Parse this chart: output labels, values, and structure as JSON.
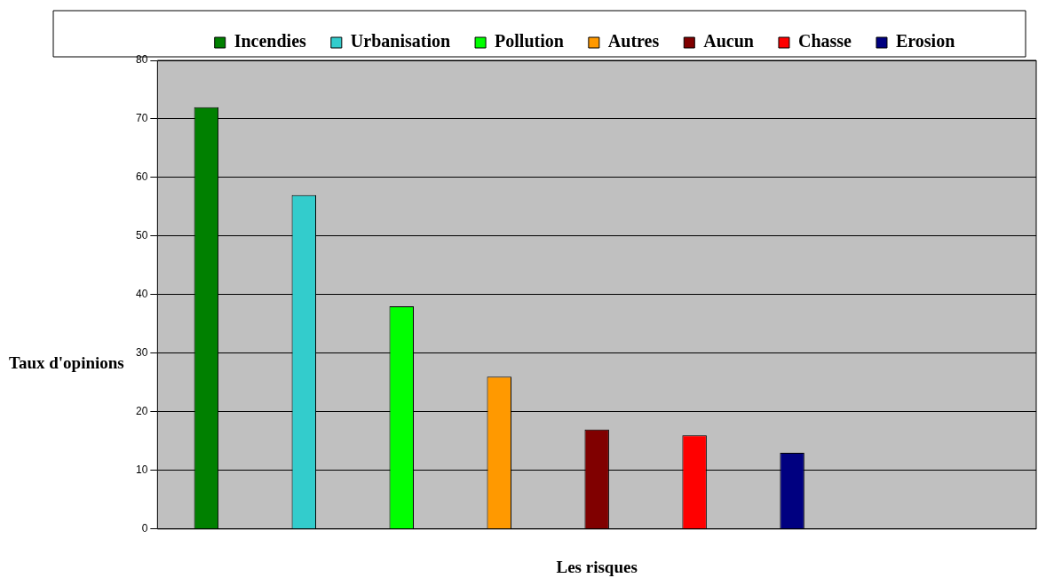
{
  "chart_data": {
    "type": "bar",
    "xlabel": "Les risques",
    "ylabel": "Taux d'opinions",
    "categories": [
      null,
      null,
      null,
      null,
      null,
      null,
      null,
      null,
      null
    ],
    "series": [
      {
        "name": "Incendies",
        "color": "#008000",
        "values": [
          72,
          null,
          null,
          null,
          null,
          null,
          null,
          null,
          null
        ]
      },
      {
        "name": "Urbanisation",
        "color": "#33cccc",
        "values": [
          null,
          57,
          null,
          null,
          null,
          null,
          null,
          null,
          null
        ]
      },
      {
        "name": "Pollution",
        "color": "#00ff00",
        "values": [
          null,
          null,
          38,
          null,
          null,
          null,
          null,
          null,
          null
        ]
      },
      {
        "name": "Autres",
        "color": "#ff9900",
        "values": [
          null,
          null,
          null,
          26,
          null,
          null,
          null,
          null,
          null
        ]
      },
      {
        "name": "Aucun",
        "color": "#800000",
        "values": [
          null,
          null,
          null,
          null,
          17,
          null,
          null,
          null,
          null
        ]
      },
      {
        "name": "Chasse",
        "color": "#ff0000",
        "values": [
          null,
          null,
          null,
          null,
          null,
          16,
          null,
          null,
          null
        ]
      },
      {
        "name": "Erosion",
        "color": "#000080",
        "values": [
          null,
          null,
          null,
          null,
          null,
          null,
          13,
          null,
          null
        ]
      }
    ],
    "ylim": [
      0,
      80
    ],
    "yticks": [
      0,
      10,
      20,
      30,
      40,
      50,
      60,
      70,
      80
    ],
    "grid": "y",
    "legend": "top"
  }
}
